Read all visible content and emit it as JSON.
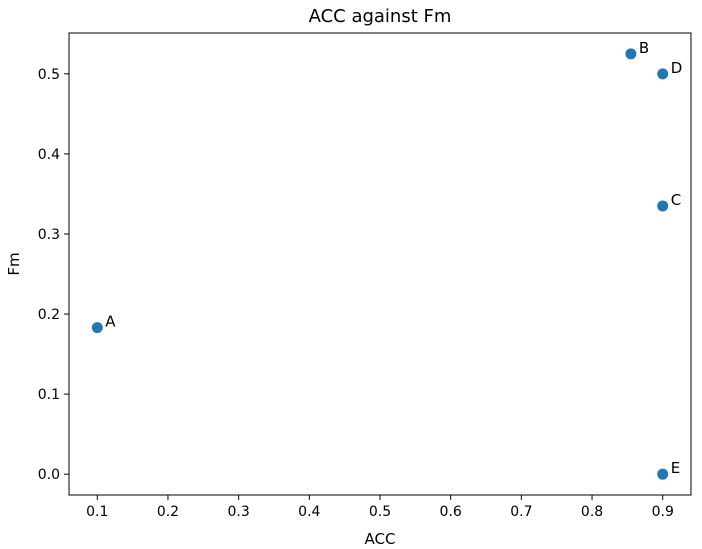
{
  "chart_data": {
    "type": "scatter",
    "title": "ACC against Fm",
    "xlabel": "ACC",
    "ylabel": "Fm",
    "xlim": [
      0.06,
      0.94
    ],
    "ylim": [
      -0.026,
      0.551
    ],
    "xticks": [
      "0.1",
      "0.2",
      "0.3",
      "0.4",
      "0.5",
      "0.6",
      "0.7",
      "0.8",
      "0.9"
    ],
    "yticks": [
      "0.0",
      "0.1",
      "0.2",
      "0.3",
      "0.4",
      "0.5"
    ],
    "grid": false,
    "marker_color": "#1f77b4",
    "points": [
      {
        "label": "A",
        "x": 0.1,
        "y": 0.183
      },
      {
        "label": "B",
        "x": 0.855,
        "y": 0.525
      },
      {
        "label": "C",
        "x": 0.9,
        "y": 0.335
      },
      {
        "label": "D",
        "x": 0.9,
        "y": 0.5
      },
      {
        "label": "E",
        "x": 0.9,
        "y": 0.0
      }
    ]
  }
}
